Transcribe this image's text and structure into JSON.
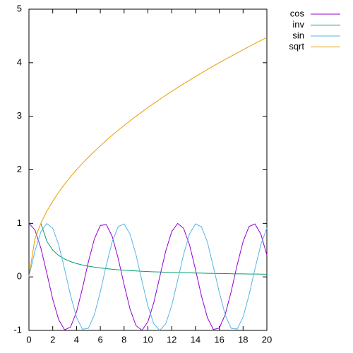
{
  "chart_data": {
    "type": "line",
    "x": [
      0,
      0.5,
      1,
      1.5,
      2,
      2.5,
      3,
      3.5,
      4,
      4.5,
      5,
      5.5,
      6,
      6.5,
      7,
      7.5,
      8,
      8.5,
      9,
      9.5,
      10,
      10.5,
      11,
      11.5,
      12,
      12.5,
      13,
      13.5,
      14,
      14.5,
      15,
      15.5,
      16,
      16.5,
      17,
      17.5,
      18,
      18.5,
      19,
      19.5,
      20
    ],
    "series": [
      {
        "name": "cos",
        "color": "#9400d3",
        "values": [
          1,
          0.878,
          0.54,
          0.071,
          -0.416,
          -0.801,
          -0.99,
          -0.936,
          -0.654,
          -0.211,
          0.284,
          0.709,
          0.96,
          0.977,
          0.754,
          0.347,
          -0.146,
          -0.602,
          -0.911,
          -0.997,
          -0.839,
          -0.476,
          0.004,
          0.483,
          0.844,
          0.998,
          0.907,
          0.595,
          0.137,
          -0.355,
          -0.76,
          -0.982,
          -0.958,
          -0.702,
          -0.275,
          0.22,
          0.66,
          0.941,
          0.989,
          0.795,
          0.408
        ]
      },
      {
        "name": "inv",
        "color": "#009e73",
        "values": [
          null,
          null,
          1,
          0.667,
          0.5,
          0.4,
          0.333,
          0.286,
          0.25,
          0.222,
          0.2,
          0.182,
          0.167,
          0.154,
          0.143,
          0.133,
          0.125,
          0.118,
          0.111,
          0.105,
          0.1,
          0.095,
          0.091,
          0.087,
          0.083,
          0.08,
          0.077,
          0.074,
          0.071,
          0.069,
          0.067,
          0.065,
          0.063,
          0.061,
          0.059,
          0.057,
          0.056,
          0.054,
          0.053,
          0.051,
          0.05
        ]
      },
      {
        "name": "sin",
        "color": "#56b4e9",
        "values": [
          0,
          0.479,
          0.841,
          0.997,
          0.909,
          0.598,
          0.141,
          -0.351,
          -0.757,
          -0.978,
          -0.959,
          -0.706,
          -0.279,
          0.215,
          0.657,
          0.938,
          0.989,
          0.798,
          0.412,
          -0.075,
          -0.544,
          -0.88,
          -1.0,
          -0.875,
          -0.537,
          -0.066,
          0.42,
          0.804,
          0.991,
          0.935,
          0.65,
          0.19,
          -0.288,
          -0.712,
          -0.961,
          -0.976,
          -0.751,
          -0.339,
          0.15,
          0.606,
          0.913
        ]
      },
      {
        "name": "sqrt",
        "color": "#e69f00",
        "values": [
          0,
          0.707,
          1,
          1.225,
          1.414,
          1.581,
          1.732,
          1.871,
          2,
          2.121,
          2.236,
          2.345,
          2.449,
          2.55,
          2.646,
          2.739,
          2.828,
          2.915,
          3,
          3.082,
          3.162,
          3.24,
          3.317,
          3.391,
          3.464,
          3.536,
          3.606,
          3.674,
          3.742,
          3.808,
          3.873,
          3.937,
          4,
          4.062,
          4.123,
          4.183,
          4.243,
          4.301,
          4.359,
          4.416,
          4.472
        ]
      }
    ],
    "xlim": [
      0,
      20
    ],
    "xticks": [
      0,
      2,
      4,
      6,
      8,
      10,
      12,
      14,
      16,
      18,
      20
    ],
    "ylim": [
      -1,
      5
    ],
    "yticks": [
      -1,
      0,
      1,
      2,
      3,
      4,
      5
    ],
    "grid": false,
    "legend": "outside-top-right"
  }
}
